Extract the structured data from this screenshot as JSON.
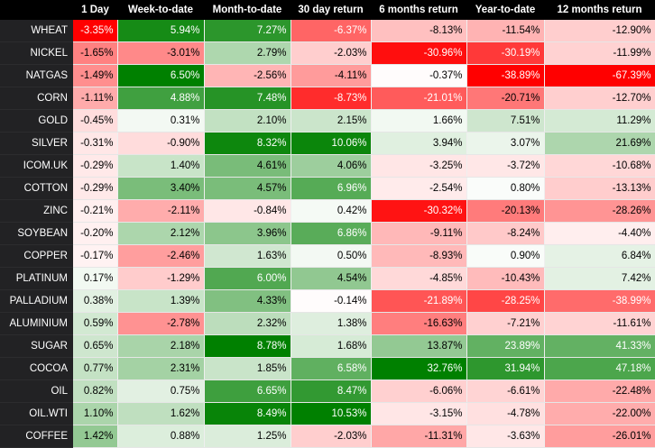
{
  "chart_data": {
    "type": "table",
    "colors": {
      "positive": "#008000",
      "negative": "#ff0000",
      "neutral": "#ffffff",
      "header_bg": "#000000",
      "row_label_bg": "#222224"
    },
    "columns": [
      "1 Day",
      "Week-to-date",
      "Month-to-date",
      "30 day return",
      "6 months return",
      "Year-to-date",
      "12 months return"
    ],
    "rows": [
      {
        "name": "WHEAT",
        "values": [
          -3.35,
          5.94,
          7.27,
          -6.37,
          -8.13,
          -11.54,
          -12.9
        ]
      },
      {
        "name": "NICKEL",
        "values": [
          -1.65,
          -3.01,
          2.79,
          -2.03,
          -30.96,
          -30.19,
          -11.99
        ]
      },
      {
        "name": "NATGAS",
        "values": [
          -1.49,
          6.5,
          -2.56,
          -4.11,
          -0.37,
          -38.89,
          -67.39
        ]
      },
      {
        "name": "CORN",
        "values": [
          -1.11,
          4.88,
          7.48,
          -8.73,
          -21.01,
          -20.71,
          -12.7
        ]
      },
      {
        "name": "GOLD",
        "values": [
          -0.45,
          0.31,
          2.1,
          2.15,
          1.66,
          7.51,
          11.29
        ]
      },
      {
        "name": "SILVER",
        "values": [
          -0.31,
          -0.9,
          8.32,
          10.06,
          3.94,
          3.07,
          21.69
        ]
      },
      {
        "name": "ICOM.UK",
        "values": [
          -0.29,
          1.4,
          4.61,
          4.06,
          -3.25,
          -3.72,
          -10.68
        ]
      },
      {
        "name": "COTTON",
        "values": [
          -0.29,
          3.4,
          4.57,
          6.96,
          -2.54,
          0.8,
          -13.13
        ]
      },
      {
        "name": "ZINC",
        "values": [
          -0.21,
          -2.11,
          -0.84,
          0.42,
          -30.32,
          -20.13,
          -28.26
        ]
      },
      {
        "name": "SOYBEAN",
        "values": [
          -0.2,
          2.12,
          3.96,
          6.86,
          -9.11,
          -8.24,
          -4.4
        ]
      },
      {
        "name": "COPPER",
        "values": [
          -0.17,
          -2.46,
          1.63,
          0.5,
          -8.93,
          0.9,
          6.84
        ]
      },
      {
        "name": "PLATINUM",
        "values": [
          0.17,
          -1.29,
          6.0,
          4.54,
          -4.85,
          -10.43,
          7.42
        ]
      },
      {
        "name": "PALLADIUM",
        "values": [
          0.38,
          1.39,
          4.33,
          -0.14,
          -21.89,
          -28.25,
          -38.99
        ]
      },
      {
        "name": "ALUMINIUM",
        "values": [
          0.59,
          -2.78,
          2.32,
          1.38,
          -16.63,
          -7.21,
          -11.61
        ]
      },
      {
        "name": "SUGAR",
        "values": [
          0.65,
          2.18,
          8.78,
          1.68,
          13.87,
          23.89,
          41.33
        ]
      },
      {
        "name": "COCOA",
        "values": [
          0.77,
          2.31,
          1.85,
          6.58,
          32.76,
          31.94,
          47.18
        ]
      },
      {
        "name": "OIL",
        "values": [
          0.82,
          0.75,
          6.65,
          8.47,
          -6.06,
          -6.61,
          -22.48
        ]
      },
      {
        "name": "OIL.WTI",
        "values": [
          1.1,
          1.62,
          8.49,
          10.53,
          -3.15,
          -4.78,
          -22.0
        ]
      },
      {
        "name": "COFFEE",
        "values": [
          1.42,
          0.88,
          1.25,
          -2.03,
          -11.31,
          -3.63,
          -26.01
        ]
      }
    ]
  }
}
